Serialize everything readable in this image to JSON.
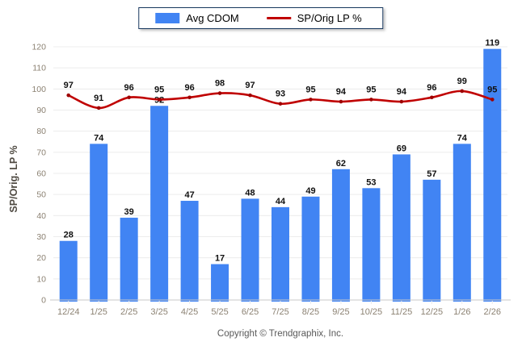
{
  "chart_data": {
    "type": "bar",
    "categories": [
      "12/24",
      "1/25",
      "2/25",
      "3/25",
      "4/25",
      "5/25",
      "6/25",
      "7/25",
      "8/25",
      "9/25",
      "10/25",
      "11/25",
      "12/25",
      "1/26",
      "2/26"
    ],
    "series": [
      {
        "name": "Avg CDOM",
        "type": "bar",
        "values": [
          28,
          74,
          39,
          92,
          47,
          17,
          48,
          44,
          49,
          62,
          53,
          69,
          57,
          74,
          119
        ]
      },
      {
        "name": "SP/Orig LP %",
        "type": "line",
        "values": [
          97,
          91,
          96,
          95,
          96,
          98,
          97,
          93,
          95,
          94,
          95,
          94,
          96,
          99,
          95
        ]
      }
    ],
    "title": "",
    "xlabel": "",
    "ylabel": "SP/Orig. LP %",
    "ylim": [
      0,
      120
    ],
    "ytick_step": 10,
    "grid": true,
    "legend_position": "top-center",
    "value_labels": true
  },
  "legend": {
    "bar_label": "Avg CDOM",
    "line_label": "SP/Orig LP %"
  },
  "footer": {
    "copyright": "Copyright © Trendgraphix, Inc."
  },
  "colors": {
    "bar": "#4184F3",
    "line": "#C00000",
    "marker": "#9E0000",
    "grid": "#ECECEC",
    "axis_line": "#C9C9C9",
    "tick_label": "#8C8273",
    "value_label": "#111111",
    "legend_border": "#17375E",
    "y_title": "#4F4A42",
    "copyright": "#595959"
  }
}
